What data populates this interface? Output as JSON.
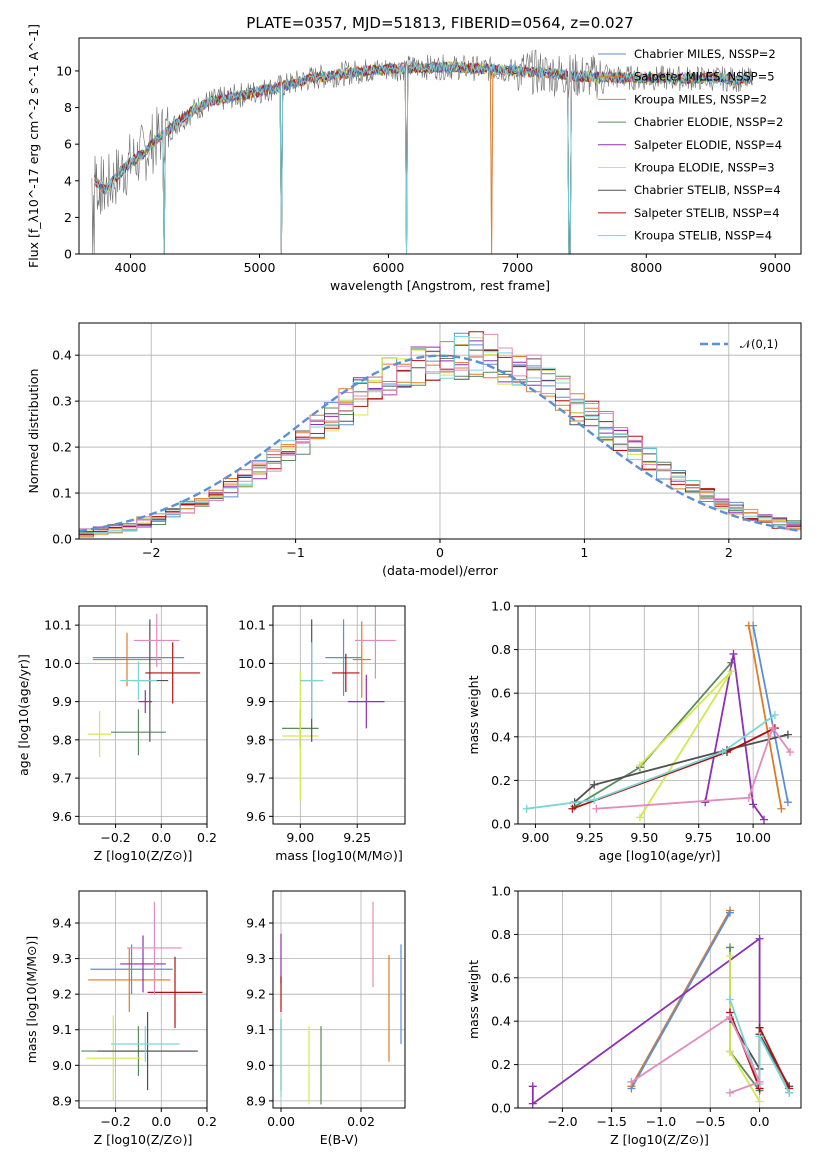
{
  "title": "PLATE=0357, MJD=51813, FIBERID=0564, z=0.027",
  "colors": [
    "#5b8fd6",
    "#e07b24",
    "#d97f3a",
    "#5a8a5e",
    "#8e2fb5",
    "#d4e84f",
    "#505050",
    "#b01010",
    "#7ad6d6"
  ],
  "pink": "#e28bbc",
  "chart_data": [
    {
      "id": "spectrum",
      "type": "line",
      "xlabel": "wavelength [Angstrom, rest frame]",
      "ylabel": "Flux [f_λ10^-17 erg cm^-2 s^-1 A^-1]",
      "xlim": [
        3600,
        9200
      ],
      "ylim": [
        0,
        11.8
      ],
      "xticks": [
        "4000",
        "5000",
        "6000",
        "7000",
        "8000",
        "9000"
      ],
      "yticks": [
        "0",
        "2",
        "4",
        "6",
        "8",
        "10"
      ],
      "grid": false,
      "legend": "top-right",
      "series": [
        {
          "name": "Chabrier MILES, N_SSP=2"
        },
        {
          "name": "Salpeter MILES, N_SSP=5"
        },
        {
          "name": "Kroupa MILES, N_SSP=2"
        },
        {
          "name": "Chabrier ELODIE, N_SSP=2"
        },
        {
          "name": "Salpeter ELODIE, N_SSP=4"
        },
        {
          "name": "Kroupa ELODIE, N_SSP=3"
        },
        {
          "name": "Chabrier STELIB, N_SSP=4"
        },
        {
          "name": "Salpeter STELIB, N_SSP=4"
        },
        {
          "name": "Kroupa STELIB, N_SSP=4"
        }
      ],
      "continuum": [
        [
          3700,
          4.2
        ],
        [
          3800,
          3.5
        ],
        [
          3900,
          4.3
        ],
        [
          4000,
          5.0
        ],
        [
          4100,
          5.5
        ],
        [
          4200,
          6.3
        ],
        [
          4300,
          6.8
        ],
        [
          4400,
          7.4
        ],
        [
          4500,
          7.9
        ],
        [
          4600,
          8.3
        ],
        [
          4800,
          8.6
        ],
        [
          5000,
          8.9
        ],
        [
          5200,
          9.2
        ],
        [
          5400,
          9.6
        ],
        [
          5600,
          9.8
        ],
        [
          5800,
          10.0
        ],
        [
          6000,
          10.1
        ],
        [
          6200,
          10.2
        ],
        [
          6500,
          10.2
        ],
        [
          6800,
          10.1
        ],
        [
          7000,
          10.0
        ],
        [
          7200,
          9.9
        ],
        [
          7500,
          9.7
        ],
        [
          8000,
          9.6
        ],
        [
          8500,
          9.6
        ],
        [
          8800,
          9.5
        ]
      ],
      "absorption": [
        4262,
        5168,
        6140,
        6800,
        7405
      ]
    },
    {
      "id": "residuals",
      "type": "bar",
      "xlabel": "(data-model)/error",
      "ylabel": "Normed distribution",
      "xlim": [
        -2.5,
        2.5
      ],
      "ylim": [
        0,
        0.47
      ],
      "xticks": [
        "−2",
        "−1",
        "0",
        "1",
        "2"
      ],
      "yticks": [
        "0.0",
        "0.1",
        "0.2",
        "0.3",
        "0.4"
      ],
      "grid": true,
      "legend": "top-right",
      "legend_entry": "𝒩(0,1)"
    },
    {
      "id": "age_vs_Z",
      "type": "scatter",
      "xlabel": "Z [log10(Z/Z⊙)]",
      "ylabel": "age [log10(age/yr)]",
      "xlim": [
        -0.36,
        0.2
      ],
      "ylim": [
        9.58,
        10.15
      ],
      "xticks": [
        "−0.2",
        "0.0",
        "0.2"
      ],
      "yticks": [
        "9.6",
        "9.7",
        "9.8",
        "9.9",
        "10.0",
        "10.1"
      ],
      "points": [
        {
          "x": -0.1,
          "y": 10.015,
          "xe": 0.2,
          "ye": 0.0,
          "c": 0
        },
        {
          "x": -0.15,
          "y": 10.01,
          "xe": 0.15,
          "ye": 0.07,
          "c": 1
        },
        {
          "x": -0.1,
          "y": 9.82,
          "xe": 0.12,
          "ye": 0.06,
          "c": 3
        },
        {
          "x": -0.07,
          "y": 9.9,
          "xe": 0.03,
          "ye": 0.03,
          "c": 4
        },
        {
          "x": -0.27,
          "y": 9.815,
          "xe": 0.05,
          "ye": 0.06,
          "c": 5
        },
        {
          "x": -0.05,
          "y": 9.955,
          "xe": 0.08,
          "ye": 0.16,
          "c": 6
        },
        {
          "x": 0.05,
          "y": 9.975,
          "xe": 0.12,
          "ye": 0.08,
          "c": 7
        },
        {
          "x": -0.1,
          "y": 9.955,
          "xe": 0.08,
          "ye": 0.05,
          "c": 8
        },
        {
          "x": -0.02,
          "y": 10.06,
          "xe": 0.1,
          "ye": 0.07,
          "c": "pink"
        }
      ]
    },
    {
      "id": "age_vs_mass",
      "type": "scatter",
      "xlabel": "mass [log10(M/M⊙)]",
      "ylabel": "",
      "xlim": [
        8.88,
        9.46
      ],
      "ylim": [
        9.58,
        10.15
      ],
      "xticks": [
        "9.00",
        "9.25"
      ],
      "yticks": [
        "9.6",
        "9.7",
        "9.8",
        "9.9",
        "10.0",
        "10.1"
      ],
      "points": [
        {
          "x": 9.19,
          "y": 10.015,
          "xe": 0.08,
          "ye": 0.1,
          "c": 0
        },
        {
          "x": 9.27,
          "y": 10.01,
          "xe": 0.04,
          "ye": 0.1,
          "c": 1
        },
        {
          "x": 9.0,
          "y": 9.83,
          "xe": 0.08,
          "ye": 0.05,
          "c": 3
        },
        {
          "x": 9.29,
          "y": 9.9,
          "xe": 0.08,
          "ye": 0.07,
          "c": 4
        },
        {
          "x": 9.0,
          "y": 9.81,
          "xe": 0.08,
          "ye": 0.17,
          "c": 5
        },
        {
          "x": 9.05,
          "y": 9.955,
          "xe": 0.05,
          "ye": 0.16,
          "c": 6
        },
        {
          "x": 9.2,
          "y": 9.975,
          "xe": 0.06,
          "ye": 0.05,
          "c": 7
        },
        {
          "x": 9.05,
          "y": 9.955,
          "xe": 0.05,
          "ye": 0.1,
          "c": 8
        },
        {
          "x": 9.33,
          "y": 10.06,
          "xe": 0.09,
          "ye": 0.1,
          "c": "pink"
        }
      ]
    },
    {
      "id": "weight_vs_age",
      "type": "line",
      "xlabel": "age [log10(age/yr)]",
      "ylabel": "mass weight",
      "xlim": [
        8.92,
        10.22
      ],
      "ylim": [
        0,
        1.0
      ],
      "xticks": [
        "9.00",
        "9.25",
        "9.50",
        "9.75",
        "10.00"
      ],
      "yticks": [
        "0.0",
        "0.2",
        "0.4",
        "0.6",
        "0.8",
        "1.0"
      ],
      "series": [
        {
          "c": 0,
          "pts": [
            [
              10.0,
              0.91
            ],
            [
              10.16,
              0.1
            ]
          ]
        },
        {
          "c": 1,
          "pts": [
            [
              9.98,
              0.91
            ],
            [
              10.13,
              0.07
            ]
          ]
        },
        {
          "c": 3,
          "pts": [
            [
              9.18,
              0.08
            ],
            [
              9.48,
              0.26
            ],
            [
              9.9,
              0.74
            ]
          ]
        },
        {
          "c": 4,
          "pts": [
            [
              9.78,
              0.1
            ],
            [
              9.91,
              0.78
            ],
            [
              10.0,
              0.09
            ],
            [
              10.05,
              0.02
            ]
          ]
        },
        {
          "c": 5,
          "pts": [
            [
              9.48,
              0.03
            ],
            [
              9.9,
              0.7
            ],
            [
              9.48,
              0.27
            ]
          ]
        },
        {
          "c": 6,
          "pts": [
            [
              9.18,
              0.1
            ],
            [
              9.27,
              0.18
            ],
            [
              9.88,
              0.34
            ],
            [
              10.16,
              0.41
            ]
          ]
        },
        {
          "c": 7,
          "pts": [
            [
              9.17,
              0.07
            ],
            [
              9.88,
              0.33
            ],
            [
              10.1,
              0.44
            ]
          ]
        },
        {
          "c": 8,
          "pts": [
            [
              8.96,
              0.07
            ],
            [
              9.27,
              0.11
            ],
            [
              9.86,
              0.33
            ],
            [
              10.1,
              0.5
            ]
          ]
        },
        {
          "c": "pink",
          "pts": [
            [
              9.28,
              0.07
            ],
            [
              9.98,
              0.12
            ],
            [
              10.09,
              0.44
            ],
            [
              10.17,
              0.33
            ]
          ]
        }
      ]
    },
    {
      "id": "mass_vs_Z",
      "type": "scatter",
      "xlabel": "Z [log10(Z/Z⊙)]",
      "ylabel": "mass [log10(M/M⊙)]",
      "xlim": [
        -0.36,
        0.2
      ],
      "ylim": [
        8.88,
        9.49
      ],
      "xticks": [
        "−0.2",
        "0.0",
        "0.2"
      ],
      "yticks": [
        "8.9",
        "9.0",
        "9.1",
        "9.2",
        "9.3",
        "9.4"
      ],
      "points": [
        {
          "x": -0.13,
          "y": 9.27,
          "xe": 0.18,
          "ye": 0.07,
          "c": 0
        },
        {
          "x": -0.14,
          "y": 9.24,
          "xe": 0.18,
          "ye": 0.09,
          "c": 1
        },
        {
          "x": -0.1,
          "y": 9.04,
          "xe": 0.25,
          "ye": 0.07,
          "c": 3
        },
        {
          "x": -0.08,
          "y": 9.285,
          "xe": 0.1,
          "ye": 0.08,
          "c": 4
        },
        {
          "x": -0.21,
          "y": 9.02,
          "xe": 0.12,
          "ye": 0.12,
          "c": 5
        },
        {
          "x": -0.06,
          "y": 9.04,
          "xe": 0.22,
          "ye": 0.11,
          "c": 6
        },
        {
          "x": 0.06,
          "y": 9.205,
          "xe": 0.12,
          "ye": 0.1,
          "c": 7
        },
        {
          "x": -0.07,
          "y": 9.06,
          "xe": 0.15,
          "ye": 0.05,
          "c": 8
        },
        {
          "x": -0.03,
          "y": 9.33,
          "xe": 0.12,
          "ye": 0.13,
          "c": "pink"
        }
      ]
    },
    {
      "id": "mass_vs_ebv",
      "type": "scatter",
      "xlabel": "E(B-V)",
      "ylabel": "",
      "xlim": [
        -0.002,
        0.031
      ],
      "ylim": [
        8.88,
        9.49
      ],
      "xticks": [
        "0.00",
        "0.02"
      ],
      "yticks": [
        "8.9",
        "9.0",
        "9.1",
        "9.2",
        "9.3",
        "9.4"
      ],
      "points": [
        {
          "x": 0.03,
          "y": 9.2,
          "ye": 0.14,
          "c": 0
        },
        {
          "x": 0.027,
          "y": 9.16,
          "ye": 0.15,
          "c": 1
        },
        {
          "x": 0.01,
          "y": 9.0,
          "ye": 0.11,
          "c": 3
        },
        {
          "x": 0.0,
          "y": 9.3,
          "ye": 0.07,
          "c": 4
        },
        {
          "x": 0.007,
          "y": 9.0,
          "ye": 0.11,
          "c": 5
        },
        {
          "x": 0.0,
          "y": 9.03,
          "ye": 0.1,
          "c": 6
        },
        {
          "x": 0.0,
          "y": 9.2,
          "ye": 0.05,
          "c": 7
        },
        {
          "x": 0.0,
          "y": 9.02,
          "ye": 0.11,
          "c": 8
        },
        {
          "x": 0.023,
          "y": 9.34,
          "ye": 0.12,
          "c": "pink"
        }
      ]
    },
    {
      "id": "weight_vs_Z",
      "type": "line",
      "xlabel": "Z [log10(Z/Z⊙)]",
      "ylabel": "mass weight",
      "xlim": [
        -2.45,
        0.42
      ],
      "ylim": [
        0,
        1.0
      ],
      "xticks": [
        "−2.0",
        "−1.5",
        "−1.0",
        "−0.5",
        "0.0"
      ],
      "yticks": [
        "0.0",
        "0.2",
        "0.4",
        "0.6",
        "0.8",
        "1.0"
      ],
      "series": [
        {
          "c": 1,
          "pts": [
            [
              -1.3,
              0.1
            ],
            [
              -0.3,
              0.91
            ]
          ]
        },
        {
          "c": 0,
          "pts": [
            [
              -1.3,
              0.09
            ],
            [
              -0.3,
              0.9
            ]
          ]
        },
        {
          "c": 3,
          "pts": [
            [
              -0.3,
              0.74
            ],
            [
              -0.3,
              0.26
            ],
            [
              0.0,
              0.08
            ],
            [
              0.0,
              0.34
            ],
            [
              0.3,
              0.07
            ]
          ]
        },
        {
          "c": 4,
          "pts": [
            [
              -2.3,
              0.1
            ],
            [
              -2.3,
              0.02
            ],
            [
              0.0,
              0.78
            ],
            [
              0.0,
              0.09
            ]
          ]
        },
        {
          "c": 5,
          "pts": [
            [
              -0.3,
              0.7
            ],
            [
              -0.3,
              0.26
            ],
            [
              0.0,
              0.03
            ]
          ]
        },
        {
          "c": 6,
          "pts": [
            [
              -0.3,
              0.41
            ],
            [
              0.0,
              0.18
            ],
            [
              0.0,
              0.34
            ],
            [
              0.3,
              0.1
            ]
          ]
        },
        {
          "c": 7,
          "pts": [
            [
              -0.3,
              0.44
            ],
            [
              0.0,
              0.09
            ],
            [
              0.0,
              0.37
            ],
            [
              0.3,
              0.09
            ]
          ]
        },
        {
          "c": 8,
          "pts": [
            [
              -0.3,
              0.5
            ],
            [
              0.0,
              0.11
            ],
            [
              0.0,
              0.33
            ],
            [
              0.3,
              0.07
            ]
          ]
        },
        {
          "c": "pink",
          "pts": [
            [
              -1.3,
              0.12
            ],
            [
              -0.3,
              0.42
            ],
            [
              0.0,
              0.12
            ],
            [
              -0.3,
              0.07
            ]
          ]
        }
      ]
    }
  ]
}
